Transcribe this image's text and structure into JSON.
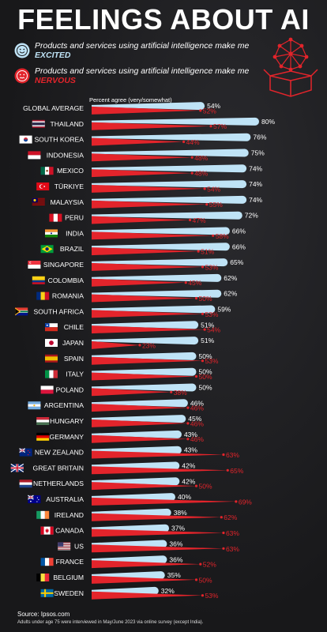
{
  "title": "FEELINGS ABOUT AI",
  "legend": {
    "excited_text": "Products and services using artificial intelligence make me ",
    "excited_em": "EXCITED",
    "nervous_text": "Products and services using artificial intelligence make me ",
    "nervous_em": "NERVOUS"
  },
  "colors": {
    "excited": "#bfe3f6",
    "nervous": "#e3242b",
    "background": "#1c1c1e"
  },
  "footer": {
    "source": "Source: Ipsos.com",
    "note": "Adults under age 75 were interviewed in May/June 2023 via online survey (except India)."
  },
  "chart_data": {
    "type": "bar",
    "xlabel": "Percent agree (very/somewhat)",
    "series": [
      {
        "name": "Products and services using artificial intelligence make me EXCITED",
        "color": "#bfe3f6"
      },
      {
        "name": "Products and services using artificial intelligence make me NERVOUS",
        "color": "#e3242b"
      }
    ],
    "rows": [
      {
        "label": "GLOBAL AVERAGE",
        "excited": 54,
        "nervous": 52
      },
      {
        "label": "THAILAND",
        "excited": 80,
        "nervous": 57
      },
      {
        "label": "SOUTH KOREA",
        "excited": 76,
        "nervous": 44
      },
      {
        "label": "INDONESIA",
        "excited": 75,
        "nervous": 48
      },
      {
        "label": "MEXICO",
        "excited": 74,
        "nervous": 48
      },
      {
        "label": "TÜRKIYE",
        "excited": 74,
        "nervous": 54
      },
      {
        "label": "MALAYSIA",
        "excited": 74,
        "nervous": 55
      },
      {
        "label": "PERU",
        "excited": 72,
        "nervous": 47
      },
      {
        "label": "INDIA",
        "excited": 66,
        "nervous": 58
      },
      {
        "label": "BRAZIL",
        "excited": 66,
        "nervous": 51
      },
      {
        "label": "SINGAPORE",
        "excited": 65,
        "nervous": 53
      },
      {
        "label": "COLOMBIA",
        "excited": 62,
        "nervous": 45
      },
      {
        "label": "ROMANIA",
        "excited": 62,
        "nervous": 50
      },
      {
        "label": "SOUTH AFRICA",
        "excited": 59,
        "nervous": 53
      },
      {
        "label": "CHILE",
        "excited": 51,
        "nervous": 54
      },
      {
        "label": "JAPAN",
        "excited": 51,
        "nervous": 23
      },
      {
        "label": "SPAIN",
        "excited": 50,
        "nervous": 53
      },
      {
        "label": "ITALY",
        "excited": 50,
        "nervous": 50
      },
      {
        "label": "POLAND",
        "excited": 50,
        "nervous": 38
      },
      {
        "label": "ARGENTINA",
        "excited": 46,
        "nervous": 46
      },
      {
        "label": "HUNGARY",
        "excited": 45,
        "nervous": 46
      },
      {
        "label": "GERMANY",
        "excited": 43,
        "nervous": 46
      },
      {
        "label": "NEW ZEALAND",
        "excited": 43,
        "nervous": 63
      },
      {
        "label": "GREAT BRITAIN",
        "excited": 42,
        "nervous": 65
      },
      {
        "label": "NETHERLANDS",
        "excited": 42,
        "nervous": 50
      },
      {
        "label": "AUSTRALIA",
        "excited": 40,
        "nervous": 69
      },
      {
        "label": "IRELAND",
        "excited": 38,
        "nervous": 62
      },
      {
        "label": "CANADA",
        "excited": 37,
        "nervous": 63
      },
      {
        "label": "US",
        "excited": 36,
        "nervous": 63
      },
      {
        "label": "FRANCE",
        "excited": 36,
        "nervous": 52
      },
      {
        "label": "BELGIUM",
        "excited": 35,
        "nervous": 50
      },
      {
        "label": "SWEDEN",
        "excited": 32,
        "nervous": 53
      }
    ],
    "flags": [
      "",
      "thailand-flag",
      "south-korea-flag",
      "indonesia-flag",
      "mexico-flag",
      "turkiye-flag",
      "malaysia-flag",
      "peru-flag",
      "india-flag",
      "brazil-flag",
      "singapore-flag",
      "colombia-flag",
      "romania-flag",
      "south-africa-flag",
      "chile-flag",
      "japan-flag",
      "spain-flag",
      "italy-flag",
      "poland-flag",
      "argentina-flag",
      "hungary-flag",
      "germany-flag",
      "new-zealand-flag",
      "great-britain-flag",
      "netherlands-flag",
      "australia-flag",
      "ireland-flag",
      "canada-flag",
      "us-flag",
      "france-flag",
      "belgium-flag",
      "sweden-flag"
    ]
  }
}
